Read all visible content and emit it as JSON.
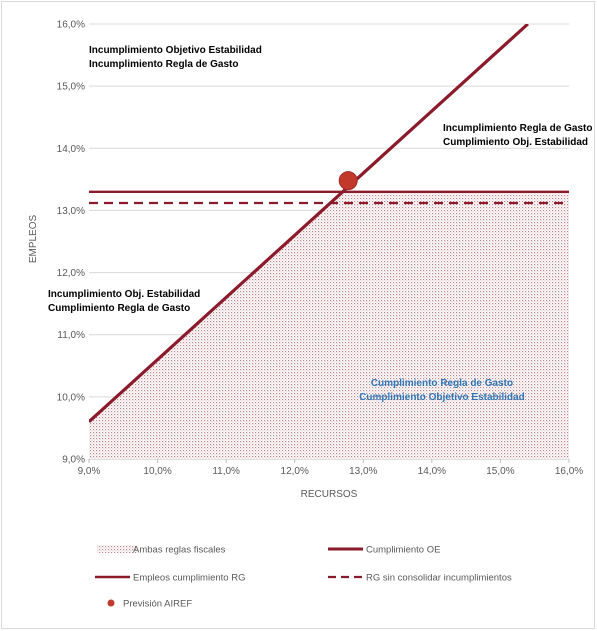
{
  "chart_data": {
    "type": "line",
    "title": "",
    "xlabel": "RECURSOS",
    "ylabel": "EMPLEOS",
    "xlim": [
      9.0,
      16.0
    ],
    "ylim": [
      9.0,
      16.0
    ],
    "x_ticks": [
      "9,0%",
      "10,0%",
      "11,0%",
      "12,0%",
      "13,0%",
      "14,0%",
      "15,0%",
      "16,0%"
    ],
    "y_ticks": [
      "9,0%",
      "10,0%",
      "11,0%",
      "12,0%",
      "13,0%",
      "14,0%",
      "15,0%",
      "16,0%"
    ],
    "grid": "horizontal",
    "series": [
      {
        "name": "Ambas reglas fiscales",
        "kind": "dotted-area",
        "color": "#c9a0a6",
        "x": [
          9.0,
          12.72,
          16.0
        ],
        "y": [
          9.6,
          13.3,
          13.3
        ]
      },
      {
        "name": "Cumplimiento OE",
        "kind": "line",
        "color": "#8b1a2b",
        "x": [
          9.0,
          15.4
        ],
        "y": [
          9.6,
          16.0
        ]
      },
      {
        "name": "Empleos cumplimiento RG",
        "kind": "line",
        "color": "#8b1a2b",
        "x": [
          9.0,
          16.0
        ],
        "y": [
          13.3,
          13.3
        ]
      },
      {
        "name": "RG sin consolidar incumplimientos",
        "kind": "dashed-line",
        "color": "#8b1a2b",
        "x": [
          9.0,
          16.0
        ],
        "y": [
          13.12,
          13.12
        ]
      },
      {
        "name": "Previsión AIREF",
        "kind": "point",
        "color": "#c0392b",
        "x": [
          12.78
        ],
        "y": [
          13.48
        ]
      }
    ],
    "annotations": [
      {
        "lines": [
          "Incumplimiento Objetivo Estabilidad",
          "Incumplimiento Regla de Gasto"
        ],
        "style": "bold"
      },
      {
        "lines": [
          "Incumplimiento Regla de Gasto",
          "Cumplimiento Obj. Estabilidad"
        ],
        "style": "bold"
      },
      {
        "lines": [
          "Incumplimiento Obj. Estabilidad",
          "Cumplimiento Regla de Gasto"
        ],
        "style": "bold"
      },
      {
        "lines": [
          "Cumplimiento Regla de Gasto",
          "Cumplimiento Objetivo Estabilidad"
        ],
        "style": "blue-bold"
      }
    ],
    "legend": {
      "placement": "bottom",
      "items": [
        "Ambas reglas fiscales",
        "Cumplimiento OE",
        "Empleos cumplimiento RG",
        "RG sin consolidar incumplimientos",
        "Previsión AIREF"
      ]
    }
  }
}
